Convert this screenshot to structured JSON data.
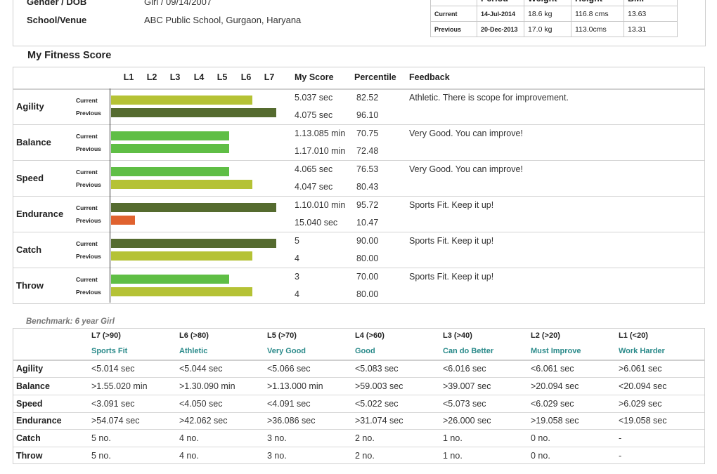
{
  "profile": {
    "gender_label": "Gender / DOB",
    "gender_value": "Girl  / 09/14/2007",
    "venue_label": "School/Venue",
    "venue_value": "ABC Public School, Gurgaon, Haryana"
  },
  "measurements": {
    "headers": [
      "Period",
      "Weight",
      "Height",
      "BMI"
    ],
    "rows": [
      {
        "label": "Current",
        "date": "14-Jul-2014",
        "weight": "18.6 kg",
        "height": "116.8 cms",
        "bmi": "13.63"
      },
      {
        "label": "Previous",
        "date": "20-Dec-2013",
        "weight": "17.0 kg",
        "height": "113.0cms",
        "bmi": "13.31"
      }
    ]
  },
  "fitness": {
    "title": "My Fitness Score",
    "levels": [
      "L1",
      "L2",
      "L3",
      "L4",
      "L5",
      "L6",
      "L7"
    ],
    "col_score": "My Score",
    "col_percentile": "Percentile",
    "col_feedback": "Feedback",
    "current_label": "Current",
    "previous_label": "Previous",
    "colors": {
      "L7": "#556b2f",
      "L6": "#b5c235",
      "L5": "#5fbe45",
      "L1": "#e0622f"
    },
    "rows": [
      {
        "name": "Agility",
        "cur_level": 6,
        "prev_level": 7,
        "cur_score": "5.037 sec",
        "prev_score": "4.075 sec",
        "cur_pct": "82.52",
        "prev_pct": "96.10",
        "feedback": "Athletic.  There is scope for improvement."
      },
      {
        "name": "Balance",
        "cur_level": 5,
        "prev_level": 5,
        "cur_score": "1.13.085 min",
        "prev_score": "1.17.010 min",
        "cur_pct": "70.75",
        "prev_pct": "72.48",
        "feedback": "Very Good.  You can improve!"
      },
      {
        "name": "Speed",
        "cur_level": 5,
        "prev_level": 6,
        "cur_score": "4.065 sec",
        "prev_score": "4.047 sec",
        "cur_pct": "76.53",
        "prev_pct": "80.43",
        "feedback": "Very Good.  You can improve!"
      },
      {
        "name": "Endurance",
        "cur_level": 7,
        "prev_level": 1,
        "cur_score": "1.10.010 min",
        "prev_score": "15.040 sec",
        "cur_pct": "95.72",
        "prev_pct": "10.47",
        "feedback": "Sports Fit.  Keep it up!"
      },
      {
        "name": "Catch",
        "cur_level": 7,
        "prev_level": 6,
        "cur_score": "5",
        "prev_score": "4",
        "cur_pct": "90.00",
        "prev_pct": "80.00",
        "feedback": "Sports Fit.  Keep it up!"
      },
      {
        "name": "Throw",
        "cur_level": 5,
        "prev_level": 6,
        "cur_score": "3",
        "prev_score": "4",
        "cur_pct": "70.00",
        "prev_pct": "80.00",
        "feedback": "Sports Fit.  Keep it up!"
      }
    ]
  },
  "benchmark": {
    "title": "Benchmark: 6 year  Girl",
    "levels": [
      "L7 (>90)",
      "L6 (>80)",
      "L5 (>70)",
      "L4 (>60)",
      "L3 (>40)",
      "L2 (>20)",
      "L1 (<20)"
    ],
    "categories": [
      "Sports Fit",
      "Athletic",
      "Very Good",
      "Good",
      "Can do Better",
      "Must Improve",
      "Work Harder"
    ],
    "rows": [
      {
        "name": "Agility",
        "values": [
          "<5.014 sec",
          "<5.044 sec",
          "<5.066 sec",
          "<5.083 sec",
          "<6.016 sec",
          "<6.061 sec",
          ">6.061 sec"
        ]
      },
      {
        "name": "Balance",
        "values": [
          ">1.55.020 min",
          ">1.30.090 min",
          ">1.13.000 min",
          ">59.003 sec",
          ">39.007 sec",
          ">20.094 sec",
          "<20.094 sec"
        ]
      },
      {
        "name": "Speed",
        "values": [
          "<3.091 sec",
          "<4.050 sec",
          "<4.091 sec",
          "<5.022 sec",
          "<5.073 sec",
          "<6.029 sec",
          ">6.029 sec"
        ]
      },
      {
        "name": "Endurance",
        "values": [
          ">54.074 sec",
          ">42.062 sec",
          ">36.086 sec",
          ">31.074 sec",
          ">26.000 sec",
          ">19.058 sec",
          "<19.058 sec"
        ]
      },
      {
        "name": "Catch",
        "values": [
          "5 no.",
          "4 no.",
          "3 no.",
          "2 no.",
          "1 no.",
          "0 no.",
          "-"
        ]
      },
      {
        "name": "Throw",
        "values": [
          "5 no.",
          "4 no.",
          "3 no.",
          "2 no.",
          "1 no.",
          "0 no.",
          "-"
        ]
      }
    ]
  }
}
